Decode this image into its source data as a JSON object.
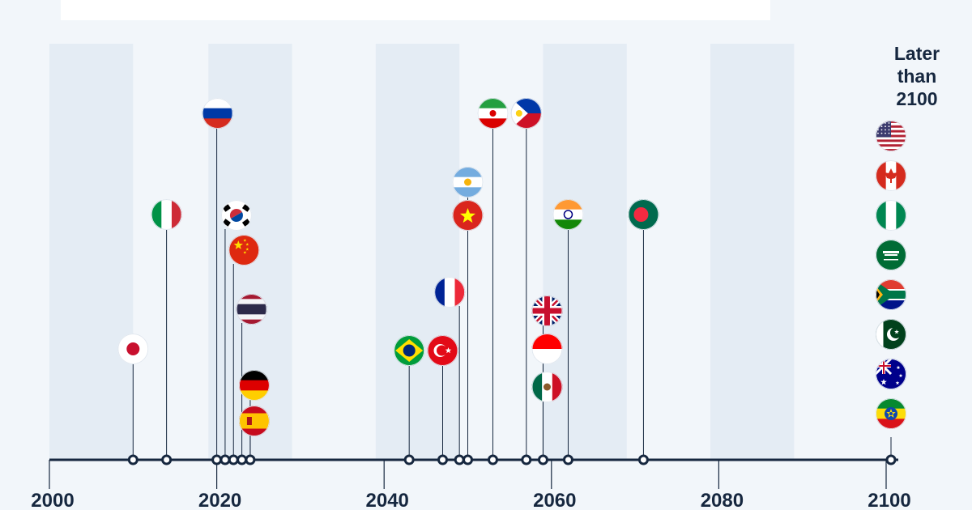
{
  "chart_data": {
    "type": "timeline",
    "x_axis": {
      "min": 2000,
      "max": 2101,
      "ticks": [
        2000,
        2020,
        2040,
        2060,
        2080,
        2100
      ],
      "tick_labels": [
        "2000",
        "2020",
        "2040",
        "2060",
        "2080",
        "2100"
      ]
    },
    "later_group_label": "Later than 2100",
    "stripes_decades": [
      2000,
      2019,
      2039,
      2059,
      2079
    ],
    "events": [
      {
        "country": "Japan",
        "year": 2010
      },
      {
        "country": "Italy",
        "year": 2014
      },
      {
        "country": "Russia",
        "year": 2020
      },
      {
        "country": "South Korea",
        "year": 2021
      },
      {
        "country": "China",
        "year": 2022
      },
      {
        "country": "Thailand",
        "year": 2023
      },
      {
        "country": "Germany",
        "year": 2024
      },
      {
        "country": "Spain",
        "year": 2024
      },
      {
        "country": "Brazil",
        "year": 2043
      },
      {
        "country": "Turkey",
        "year": 2047
      },
      {
        "country": "France",
        "year": 2049
      },
      {
        "country": "Argentina",
        "year": 2050
      },
      {
        "country": "Vietnam",
        "year": 2050
      },
      {
        "country": "Iran",
        "year": 2053
      },
      {
        "country": "Philippines",
        "year": 2057
      },
      {
        "country": "United Kingdom",
        "year": 2059
      },
      {
        "country": "Indonesia",
        "year": 2059
      },
      {
        "country": "Mexico",
        "year": 2059
      },
      {
        "country": "India",
        "year": 2062
      },
      {
        "country": "Bangladesh",
        "year": 2071
      }
    ],
    "later_than_2100": [
      "United States",
      "Canada",
      "Nigeria",
      "Saudi Arabia",
      "South Africa",
      "Pakistan",
      "Australia",
      "Ethiopia"
    ]
  }
}
